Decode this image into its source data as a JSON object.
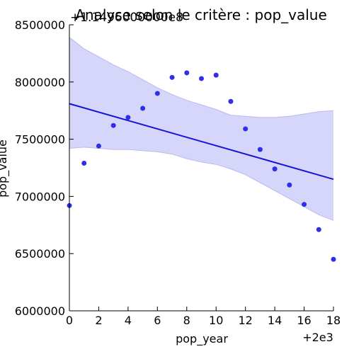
{
  "chart_data": {
    "type": "scatter",
    "title": "Analyse selon le critère : pop_value",
    "offset_label": "+1.1496000000e8",
    "xlabel": "pop_year",
    "ylabel": "pop_value",
    "x_offset_label": "+2e3",
    "xlim": [
      0,
      18
    ],
    "ylim": [
      6000000,
      8500000
    ],
    "x_ticks": [
      0,
      2,
      4,
      6,
      8,
      10,
      12,
      14,
      16,
      18
    ],
    "y_ticks": [
      6000000,
      6500000,
      7000000,
      7500000,
      8000000,
      8500000
    ],
    "x_tick_labels": [
      "0",
      "2",
      "4",
      "6",
      "8",
      "10",
      "12",
      "14",
      "16",
      "18"
    ],
    "y_tick_labels": [
      "6000000",
      "6500000",
      "7000000",
      "7500000",
      "8000000",
      "8500000"
    ],
    "grid": false,
    "points": {
      "x": [
        0,
        1,
        2,
        3,
        4,
        5,
        6,
        7,
        8,
        9,
        10,
        11,
        12,
        13,
        14,
        15,
        16,
        17,
        18
      ],
      "y": [
        6920000,
        7290000,
        7440000,
        7620000,
        7690000,
        7770000,
        7900000,
        8040000,
        8080000,
        8030000,
        8060000,
        7830000,
        7590000,
        7410000,
        7240000,
        7100000,
        6930000,
        6710000,
        6450000
      ]
    },
    "regression": {
      "x": [
        0,
        18
      ],
      "y": [
        7810000,
        7150000
      ]
    },
    "confidence_band": {
      "x": [
        0,
        1,
        2,
        3,
        4,
        5,
        6,
        7,
        8,
        9,
        10,
        11,
        12,
        13,
        14,
        15,
        16,
        17,
        18
      ],
      "upper": [
        8390000,
        8290000,
        8220000,
        8150000,
        8090000,
        8020000,
        7950000,
        7890000,
        7840000,
        7800000,
        7760000,
        7710000,
        7700000,
        7690000,
        7690000,
        7700000,
        7720000,
        7740000,
        7750000
      ],
      "lower": [
        7420000,
        7430000,
        7420000,
        7410000,
        7410000,
        7400000,
        7390000,
        7370000,
        7330000,
        7300000,
        7280000,
        7240000,
        7190000,
        7120000,
        7050000,
        6980000,
        6910000,
        6840000,
        6790000
      ]
    },
    "colors": {
      "points": "#2f2fe8",
      "line": "#1515d8",
      "band": "#d6d6fb",
      "band_edge": "#b9b9ee",
      "axis": "#000000"
    }
  }
}
